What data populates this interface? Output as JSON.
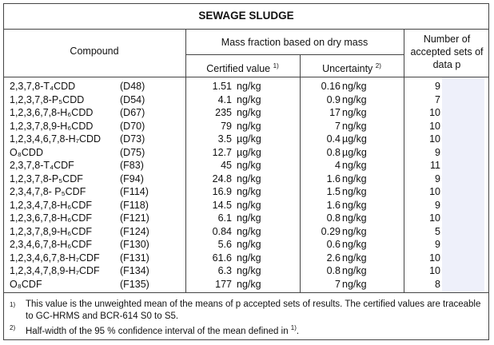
{
  "title": "SEWAGE SLUDGE",
  "header": {
    "compound": "Compound",
    "mass_fraction": "Mass fraction based on dry mass",
    "certified": {
      "text": "Certified value",
      "note": "1)"
    },
    "uncertainty": {
      "text": "Uncertainty",
      "note": "2)"
    },
    "sets": "Number of accepted sets of data p"
  },
  "rows": [
    {
      "compound": "2,3,7,8-T₄CDD",
      "code": "(D48)",
      "certified": 1.51,
      "certified_unit": "ng/kg",
      "uncertainty": 0.16,
      "uncertainty_unit": "ng/kg",
      "p": 9
    },
    {
      "compound": "1,2,3,7,8-P₅CDD",
      "code": "(D54)",
      "certified": 4.1,
      "certified_unit": "ng/kg",
      "uncertainty": 0.9,
      "uncertainty_unit": "ng/kg",
      "p": 7
    },
    {
      "compound": "1,2,3,6,7,8-H₆CDD",
      "code": "(D67)",
      "certified": 235,
      "certified_unit": "ng/kg",
      "uncertainty": 17,
      "uncertainty_unit": "ng/kg",
      "p": 10
    },
    {
      "compound": "1,2,3,7,8,9-H₆CDD",
      "code": "(D70)",
      "certified": 79,
      "certified_unit": "ng/kg",
      "uncertainty": 7,
      "uncertainty_unit": "ng/kg",
      "p": 10
    },
    {
      "compound": "1,2,3,4,6,7,8-H₇CDD",
      "code": "(D73)",
      "certified": 3.5,
      "certified_unit": "µg/kg",
      "uncertainty": 0.4,
      "uncertainty_unit": "µg/kg",
      "p": 10
    },
    {
      "compound": "O₈CDD",
      "code": "(D75)",
      "certified": 12.7,
      "certified_unit": "µg/kg",
      "uncertainty": 0.8,
      "uncertainty_unit": "µg/kg",
      "p": 9
    },
    {
      "compound": "2,3,7,8-T₄CDF",
      "code": "(F83)",
      "certified": 45,
      "certified_unit": "ng/kg",
      "uncertainty": 4,
      "uncertainty_unit": "ng/kg",
      "p": 11
    },
    {
      "compound": "1,2,3,7,8-P₅CDF",
      "code": "(F94)",
      "certified": 24.8,
      "certified_unit": "ng/kg",
      "uncertainty": 1.6,
      "uncertainty_unit": "ng/kg",
      "p": 9
    },
    {
      "compound": "2,3,4,7,8- P₅CDF",
      "code": "(F114)",
      "certified": 16.9,
      "certified_unit": "ng/kg",
      "uncertainty": 1.5,
      "uncertainty_unit": "ng/kg",
      "p": 10
    },
    {
      "compound": "1,2,3,4,7,8-H₆CDF",
      "code": "(F118)",
      "certified": 14.5,
      "certified_unit": "ng/kg",
      "uncertainty": 1.6,
      "uncertainty_unit": "ng/kg",
      "p": 9
    },
    {
      "compound": "1,2,3,6,7,8-H₆CDF",
      "code": "(F121)",
      "certified": 6.1,
      "certified_unit": "ng/kg",
      "uncertainty": 0.8,
      "uncertainty_unit": "ng/kg",
      "p": 10
    },
    {
      "compound": "1,2,3,7,8,9-H₆CDF",
      "code": "(F124)",
      "certified": 0.84,
      "certified_unit": "ng/kg",
      "uncertainty": 0.29,
      "uncertainty_unit": "ng/kg",
      "p": 5
    },
    {
      "compound": "2,3,4,6,7,8-H₆CDF",
      "code": "(F130)",
      "certified": 5.6,
      "certified_unit": "ng/kg",
      "uncertainty": 0.6,
      "uncertainty_unit": "ng/kg",
      "p": 9
    },
    {
      "compound": "1,2,3,4,6,7,8-H₇CDF",
      "code": "(F131)",
      "certified": 61.6,
      "certified_unit": "ng/kg",
      "uncertainty": 2.6,
      "uncertainty_unit": "ng/kg",
      "p": 10
    },
    {
      "compound": "1,2,3,4,7,8,9-H₇CDF",
      "code": "(F134)",
      "certified": 6.3,
      "certified_unit": "ng/kg",
      "uncertainty": 0.8,
      "uncertainty_unit": "ng/kg",
      "p": 10
    },
    {
      "compound": "O₈CDF",
      "code": "(F135)",
      "certified": 177,
      "certified_unit": "ng/kg",
      "uncertainty": 7,
      "uncertainty_unit": "ng/kg",
      "p": 8
    }
  ],
  "footnotes": [
    {
      "marker": "1)",
      "text": "This value is the unweighted mean of the means of p accepted sets of results. The certified values are traceable to GC-HRMS and BCR-614 S0 to S5."
    },
    {
      "marker": "2)",
      "text": "Half-width of the 95 % confidence interval of the mean defined in",
      "ref": "1)",
      "end": "."
    }
  ]
}
